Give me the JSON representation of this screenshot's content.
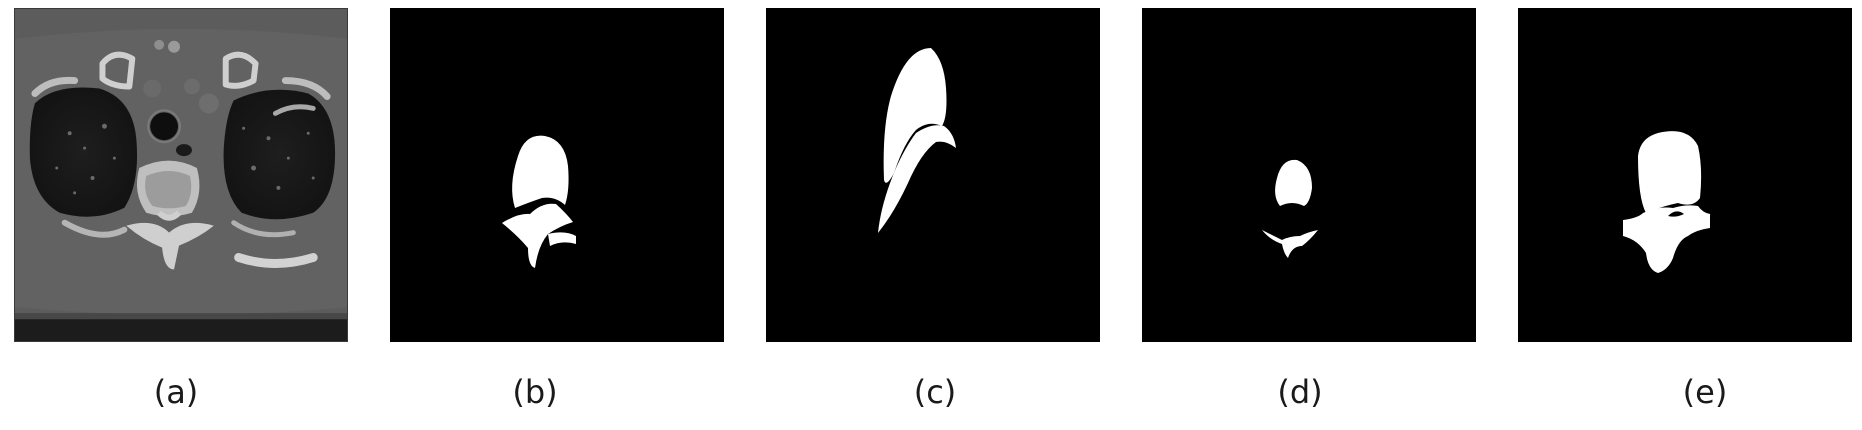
{
  "panels": [
    {
      "id": "a",
      "caption": "(a)"
    },
    {
      "id": "b",
      "caption": "(b)"
    },
    {
      "id": "c",
      "caption": "(c)"
    },
    {
      "id": "d",
      "caption": "(d)"
    },
    {
      "id": "e",
      "caption": "(e)"
    }
  ],
  "colors": {
    "background": "#ffffff",
    "mask_background": "#000000",
    "mask_foreground": "#ffffff",
    "ct_tissue": "#5e5e5e",
    "ct_lung": "#161616",
    "ct_bone": "#c8c8c8"
  }
}
